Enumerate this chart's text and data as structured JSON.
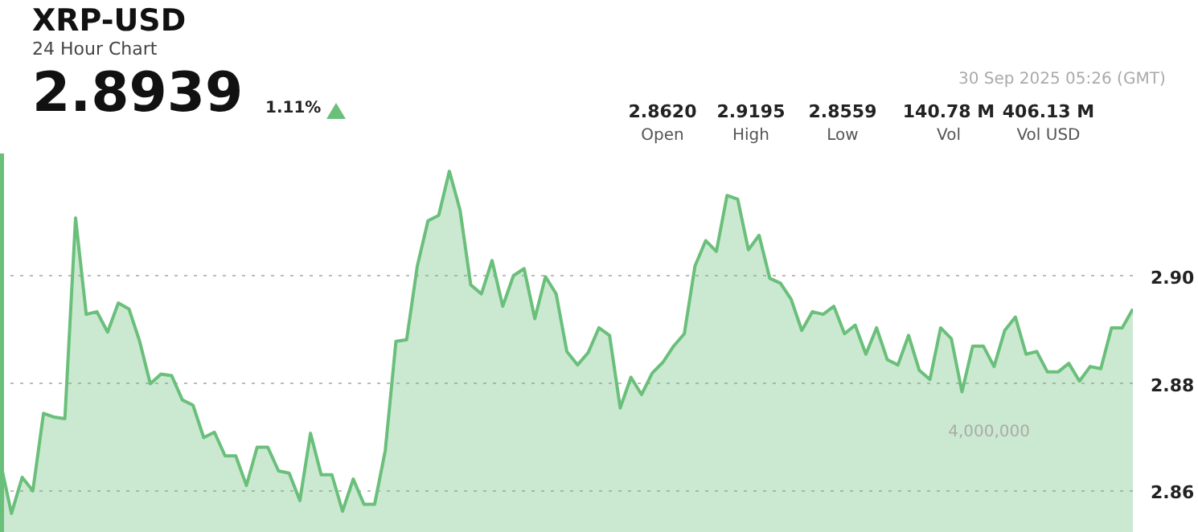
{
  "chart_data": {
    "type": "area",
    "title": "XRP-USD",
    "subtitle": "24 Hour Chart",
    "annotations": [
      "2.8939",
      "1.11%",
      "30 Sep 2025 05:26 (GMT)",
      "2.8620",
      "Open",
      "2.9195",
      "High",
      "2.8559",
      "Low",
      "140.78 M",
      "Vol",
      "406.13 M",
      "Vol USD",
      "4,000,000"
    ],
    "categories": [
      null,
      null,
      null,
      null,
      null,
      null,
      null,
      null,
      null,
      null,
      null,
      null,
      null,
      null,
      null,
      null,
      null,
      null,
      null,
      null,
      null,
      null,
      null,
      null,
      null,
      null,
      null,
      null,
      null,
      null,
      null,
      null,
      null,
      null,
      null,
      null,
      null,
      null,
      null,
      null,
      null,
      null,
      null,
      null,
      null,
      null,
      null,
      null,
      null,
      null,
      null,
      null,
      null,
      null,
      null,
      null,
      null,
      null,
      null,
      null,
      null,
      null,
      null,
      null,
      null,
      null,
      null,
      null,
      null,
      null,
      null,
      null,
      null,
      null,
      null,
      null,
      null,
      null,
      null,
      null,
      null,
      null,
      null,
      null,
      null,
      null,
      null,
      null,
      null,
      null,
      null,
      null,
      null,
      null,
      null,
      null,
      null,
      null,
      null,
      null,
      null,
      null,
      null,
      null,
      null,
      null,
      null
    ],
    "series": [
      {
        "color": "#6abf7b",
        "values": [
          2.8651,
          2.8559,
          2.8626,
          2.8601,
          2.8745,
          2.8738,
          2.8735,
          2.9108,
          2.8929,
          2.8934,
          2.8896,
          2.895,
          2.8939,
          2.8879,
          2.88,
          2.8818,
          2.8815,
          2.877,
          2.876,
          2.87,
          2.871,
          2.8666,
          2.8666,
          2.8611,
          2.8682,
          2.8682,
          2.8638,
          2.8634,
          2.8583,
          2.8708,
          2.8631,
          2.8631,
          2.8563,
          2.8623,
          2.8576,
          2.8576,
          2.8676,
          2.8879,
          2.8882,
          2.9019,
          2.9103,
          2.9113,
          2.9195,
          2.9123,
          2.8984,
          2.8967,
          2.9029,
          2.8944,
          2.9001,
          2.9014,
          2.8921,
          2.8999,
          2.8967,
          2.886,
          2.8835,
          2.8858,
          2.8904,
          2.889,
          2.8755,
          2.8812,
          2.878,
          2.882,
          2.884,
          2.887,
          2.8893,
          2.9019,
          2.9066,
          2.9046,
          2.915,
          2.9143,
          2.9049,
          2.9076,
          2.8996,
          2.8987,
          2.8957,
          2.8899,
          2.8934,
          2.8929,
          2.8944,
          2.8893,
          2.8909,
          2.8855,
          2.8904,
          2.8845,
          2.8835,
          2.889,
          2.8825,
          2.8808,
          2.8904,
          2.8884,
          2.8785,
          2.887,
          2.887,
          2.8832,
          2.8899,
          2.8924,
          2.8855,
          2.886,
          2.8822,
          2.8822,
          2.8838,
          2.8805,
          2.8832,
          2.8828,
          2.8904,
          2.8904,
          2.8939
        ]
      }
    ],
    "ylim": [
      2.8523,
      2.9228
    ],
    "yticks": [
      2.86,
      2.88,
      {
        "value": 2.9,
        "label": "2.90"
      }
    ],
    "grid": "y",
    "tick_labels": "y"
  }
}
